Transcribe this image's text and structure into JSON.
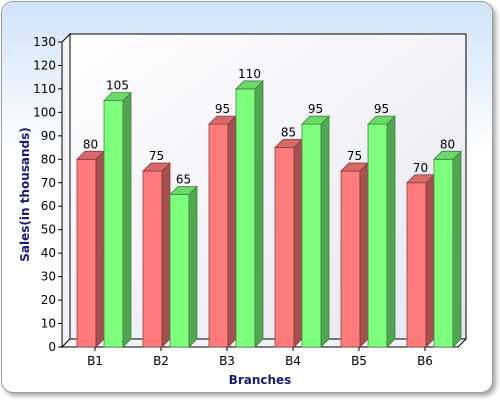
{
  "chart_data": {
    "type": "bar",
    "subtype": "3d-clustered",
    "categories": [
      "B1",
      "B2",
      "B3",
      "B4",
      "B5",
      "B6"
    ],
    "series": [
      {
        "values": [
          80,
          75,
          95,
          85,
          75,
          70
        ],
        "color": "#ff7b7b"
      },
      {
        "values": [
          105,
          65,
          110,
          95,
          95,
          80
        ],
        "color": "#7dff7d"
      }
    ],
    "xlabel": "Branches",
    "ylabel": "Sales(in thousands)",
    "ylim": [
      0,
      130
    ],
    "ytick_step": 10,
    "grid": false,
    "legend": "none"
  }
}
